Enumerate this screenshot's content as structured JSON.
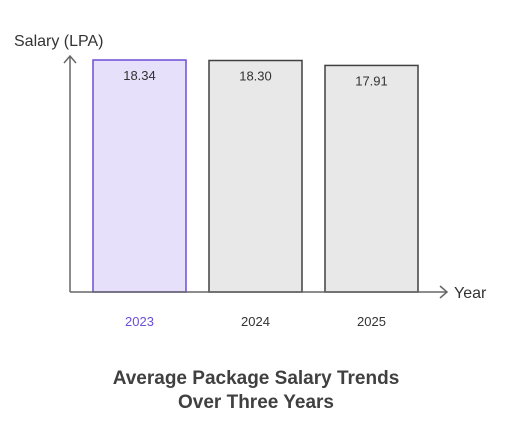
{
  "chart_data": {
    "type": "bar",
    "title_lines": [
      "Average Package Salary Trends",
      "Over Three Years"
    ],
    "xlabel": "Year",
    "ylabel": "Salary (LPA)",
    "categories": [
      "2023",
      "2024",
      "2025"
    ],
    "values": [
      18.34,
      18.3,
      17.91
    ],
    "value_labels": [
      "18.34",
      "18.30",
      "17.91"
    ],
    "ylim": [
      0,
      18.34
    ],
    "grid": false,
    "colors": {
      "highlight_fill": "#E6E0FA",
      "highlight_stroke": "#6B4FD6",
      "highlight_text": "#6B4FD6",
      "bar_fill": "#E8E8E8",
      "bar_stroke": "#404040",
      "axis": "#666666",
      "tick_text": "#333333"
    },
    "highlight_index": 0
  }
}
